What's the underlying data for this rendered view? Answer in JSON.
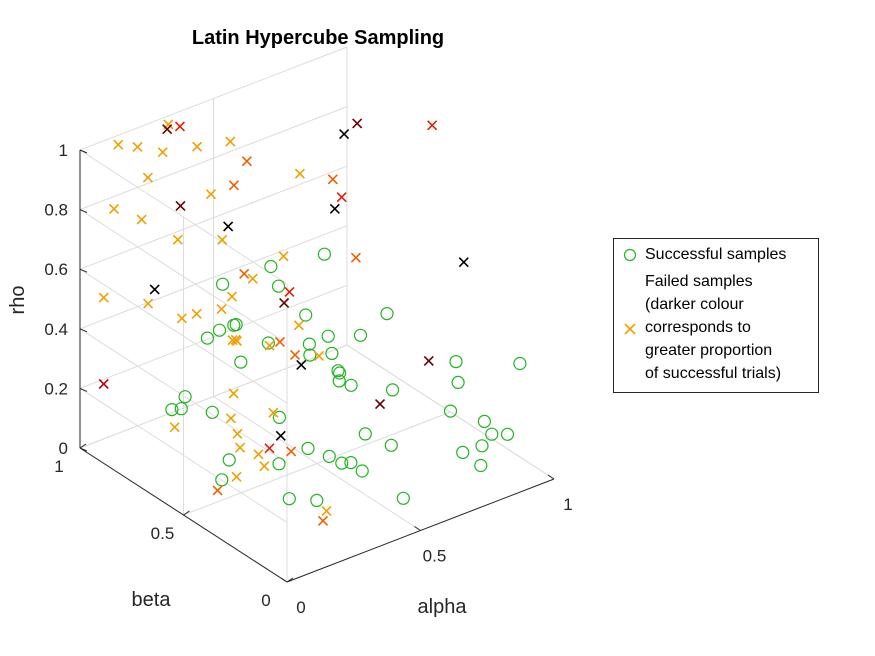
{
  "colors": {
    "success": "#22b422",
    "fail_levels": [
      "#000000",
      "#6a0000",
      "#b40000",
      "#e02000",
      "#f06000",
      "#f0a000",
      "#f5be10"
    ],
    "grid": "#dcdcdc",
    "axis": "#262626"
  },
  "chart_data": {
    "type": "scatter",
    "projection": "3d",
    "title": "Latin Hypercube Sampling",
    "xlabel": "alpha",
    "ylabel": "beta",
    "zlabel": "rho",
    "xlim": [
      0,
      1
    ],
    "ylim": [
      0,
      1
    ],
    "zlim": [
      0,
      1
    ],
    "xticks": [
      "0",
      "0.5",
      "1"
    ],
    "yticks": [
      "0",
      "0.5",
      "1"
    ],
    "zticks": [
      "0",
      "0.2",
      "0.4",
      "0.6",
      "0.8",
      "1"
    ],
    "grid": true,
    "legend_position": "right",
    "legend": [
      {
        "label": "Successful samples",
        "marker": "circle",
        "color": "#22b422"
      },
      {
        "label": "Failed samples\n(darker colour\ncorresponds to\ngreater proportion\nof successful trials)",
        "marker": "x",
        "color": "#f0a000"
      }
    ],
    "series": [
      {
        "name": "Successful samples",
        "marker": "circle",
        "points": [
          [
            0.29,
            0.93,
            0.06
          ],
          [
            0.46,
            0.63,
            0.11
          ],
          [
            0.24,
            0.82,
            0.13
          ],
          [
            0.55,
            0.4,
            0.29
          ],
          [
            0.58,
            0.64,
            0.31
          ],
          [
            0.21,
            0.55,
            0.09
          ],
          [
            0.8,
            0.09,
            0.14
          ],
          [
            0.52,
            0.56,
            0.33
          ],
          [
            0.78,
            0.07,
            0.09
          ],
          [
            0.21,
            0.26,
            0.09
          ],
          [
            0.28,
            0.4,
            0.12
          ],
          [
            0.43,
            0.29,
            0.12
          ],
          [
            0.41,
            0.22,
            0.16
          ],
          [
            0.36,
            0.26,
            0.18
          ],
          [
            0.49,
            0.07,
            0.08
          ],
          [
            0.48,
            0.42,
            0.47
          ],
          [
            0.92,
            0.36,
            0.19
          ],
          [
            0.54,
            0.45,
            0.32
          ],
          [
            0.57,
            0.38,
            0.46
          ],
          [
            0.72,
            0.08,
            0.15
          ],
          [
            0.93,
            0.21,
            0.08
          ],
          [
            0.32,
            0.67,
            0.45
          ],
          [
            0.49,
            0.71,
            0.57
          ],
          [
            0.62,
            0.29,
            0.3
          ],
          [
            0.84,
            0.13,
            0.19
          ],
          [
            0.61,
            0.57,
            0.3
          ],
          [
            0.52,
            0.49,
            0.7
          ],
          [
            0.45,
            0.49,
            0.52
          ],
          [
            0.7,
            0.42,
            0.47
          ],
          [
            0.29,
            0.7,
            0.43
          ],
          [
            0.69,
            0.1,
            0.29
          ],
          [
            0.17,
            0.58,
            0.25
          ],
          [
            0.33,
            0.81,
            0.34
          ],
          [
            0.88,
            0.07,
            0.16
          ],
          [
            0.35,
            0.35,
            0.17
          ],
          [
            0.58,
            0.37,
            0.13
          ],
          [
            0.6,
            0.52,
            0.26
          ],
          [
            0.38,
            0.58,
            0.41
          ],
          [
            0.29,
            0.23,
            0.07
          ],
          [
            0.12,
            0.47,
            0.09
          ],
          [
            0.56,
            0.47,
            0.27
          ],
          [
            0.13,
            0.66,
            0.28
          ],
          [
            0.41,
            0.84,
            0.48
          ],
          [
            0.36,
            0.71,
            0.42
          ],
          [
            0.3,
            0.61,
            0.36
          ],
          [
            0.6,
            0.27,
            0.13
          ],
          [
            0.85,
            0.28,
            0.32
          ],
          [
            0.95,
            0.1,
            0.36
          ],
          [
            0.46,
            0.23,
            0.11
          ],
          [
            0.48,
            0.66,
            0.53
          ]
        ]
      },
      {
        "name": "Failed samples",
        "marker": "x",
        "points": [
          [
            0.05,
            0.95,
            0.22,
            2
          ],
          [
            0.05,
            0.9,
            0.83,
            5
          ],
          [
            0.05,
            0.95,
            0.51,
            5
          ],
          [
            0.13,
            0.87,
            0.78,
            5
          ],
          [
            0.2,
            0.93,
            0.87,
            5
          ],
          [
            0.2,
            0.98,
            0.95,
            5
          ],
          [
            0.12,
            0.97,
            0.99,
            5
          ],
          [
            0.24,
            0.91,
            0.95,
            5
          ],
          [
            0.3,
            0.96,
            1.0,
            5
          ],
          [
            0.33,
            0.86,
            0.96,
            5
          ],
          [
            0.06,
            0.62,
            0.22,
            5
          ],
          [
            0.25,
            0.85,
            0.68,
            5
          ],
          [
            0.18,
            0.74,
            0.49,
            5
          ],
          [
            0.1,
            0.8,
            0.54,
            5
          ],
          [
            0.32,
            0.78,
            0.84,
            5
          ],
          [
            0.47,
            0.88,
            0.92,
            5
          ],
          [
            0.22,
            0.6,
            0.57,
            5
          ],
          [
            0.17,
            0.49,
            0.27,
            5
          ],
          [
            0.22,
            0.72,
            0.5,
            5
          ],
          [
            0.3,
            0.7,
            0.73,
            5
          ],
          [
            0.09,
            0.36,
            0.16,
            5
          ],
          [
            0.29,
            0.44,
            0.27,
            5
          ],
          [
            0.46,
            0.61,
            0.66,
            5
          ],
          [
            0.56,
            0.66,
            0.88,
            5
          ],
          [
            0.18,
            0.49,
            0.35,
            5
          ],
          [
            0.27,
            0.59,
            0.45,
            5
          ],
          [
            0.36,
            0.63,
            0.61,
            5
          ],
          [
            0.15,
            0.42,
            0.21,
            5
          ],
          [
            0.29,
            0.64,
            0.57,
            5
          ],
          [
            0.25,
            0.57,
            0.47,
            5
          ],
          [
            0.23,
            0.56,
            0.48,
            5
          ],
          [
            0.14,
            0.29,
            0.21,
            5
          ],
          [
            0.33,
            0.51,
            0.45,
            5
          ],
          [
            0.18,
            0.37,
            0.2,
            5
          ],
          [
            0.44,
            0.51,
            0.48,
            5
          ],
          [
            0.43,
            0.4,
            0.43,
            5
          ],
          [
            0.21,
            0.08,
            0.13,
            5
          ],
          [
            0.14,
            0.42,
            0.26,
            5
          ],
          [
            0.47,
            0.8,
            0.89,
            4
          ],
          [
            0.4,
            0.55,
            0.42,
            4
          ],
          [
            0.05,
            0.4,
            0.11,
            4
          ],
          [
            0.22,
            0.11,
            0.08,
            4
          ],
          [
            0.31,
            0.38,
            0.16,
            4
          ],
          [
            0.41,
            0.49,
            0.4,
            4
          ],
          [
            0.46,
            0.85,
            0.79,
            4
          ],
          [
            0.39,
            0.71,
            0.58,
            4
          ],
          [
            0.66,
            0.63,
            0.84,
            4
          ],
          [
            0.7,
            0.57,
            0.59,
            4
          ],
          [
            0.67,
            0.6,
            0.79,
            3
          ],
          [
            0.32,
            0.93,
            1.0,
            3
          ],
          [
            0.97,
            0.55,
            0.95,
            3
          ],
          [
            0.26,
            0.42,
            0.17,
            3
          ],
          [
            0.42,
            0.53,
            0.59,
            3
          ],
          [
            0.79,
            0.68,
            0.96,
            1
          ],
          [
            0.26,
            0.85,
            0.79,
            1
          ],
          [
            0.55,
            0.26,
            0.29,
            1
          ],
          [
            0.4,
            0.53,
            0.56,
            1
          ],
          [
            0.81,
            0.36,
            0.3,
            1
          ],
          [
            0.28,
            0.94,
            1.0,
            1
          ],
          [
            0.71,
            0.64,
            0.97,
            0
          ],
          [
            0.59,
            0.53,
            0.81,
            0
          ],
          [
            0.33,
            0.71,
            0.76,
            0
          ],
          [
            0.21,
            0.91,
            0.5,
            0
          ],
          [
            0.41,
            0.46,
            0.38,
            0
          ],
          [
            0.98,
            0.41,
            0.55,
            0
          ],
          [
            0.31,
            0.43,
            0.19,
            0
          ]
        ]
      }
    ]
  }
}
